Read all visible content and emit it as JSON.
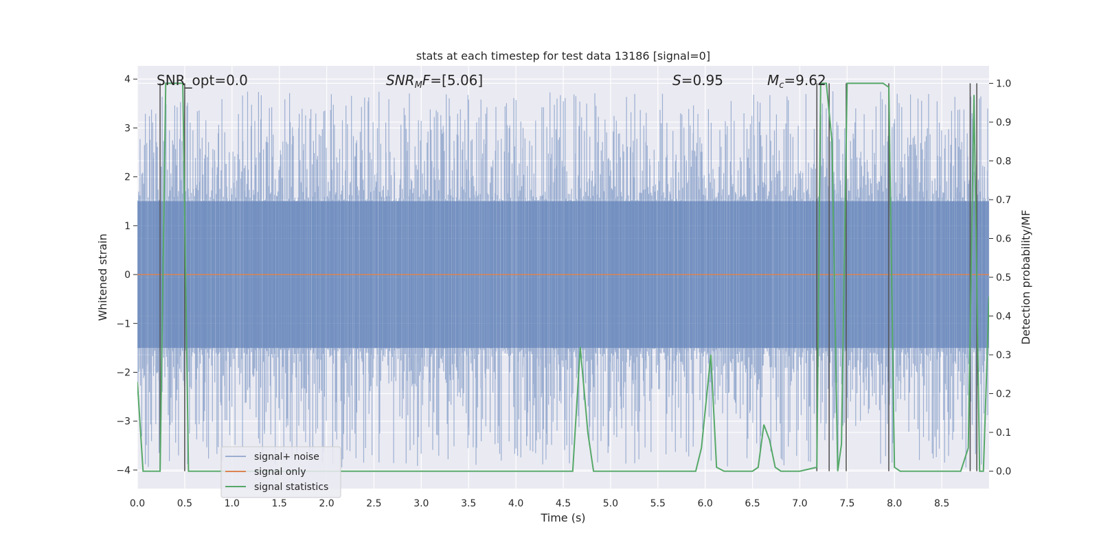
{
  "chart_data": {
    "type": "line",
    "title": "stats at each timestep for test data 13186 [signal=0]",
    "xlabel": "Time (s)",
    "ylabel_left": "Whitened strain",
    "ylabel_right": "Detection probability/MF",
    "xlim": [
      0.0,
      9.0
    ],
    "ylim_left": [
      -4.38,
      4.27
    ],
    "ylim_right": [
      -0.045,
      1.045
    ],
    "x_ticks": [
      "0.0",
      "0.5",
      "1.0",
      "1.5",
      "2.0",
      "2.5",
      "3.0",
      "3.5",
      "4.0",
      "4.5",
      "5.0",
      "5.5",
      "6.0",
      "6.5",
      "7.0",
      "7.5",
      "8.0",
      "8.5"
    ],
    "x_tick_values": [
      0.0,
      0.5,
      1.0,
      1.5,
      2.0,
      2.5,
      3.0,
      3.5,
      4.0,
      4.5,
      5.0,
      5.5,
      6.0,
      6.5,
      7.0,
      7.5,
      8.0,
      8.5
    ],
    "y_left_ticks": [
      "4",
      "3",
      "2",
      "1",
      "0",
      "−1",
      "−2",
      "−3",
      "−4"
    ],
    "y_left_tick_values": [
      4,
      3,
      2,
      1,
      0,
      -1,
      -2,
      -3,
      -4
    ],
    "y_right_ticks": [
      "1.0",
      "0.9",
      "0.8",
      "0.7",
      "0.6",
      "0.5",
      "0.4",
      "0.3",
      "0.2",
      "0.1",
      "0.0"
    ],
    "y_right_tick_values": [
      1.0,
      0.9,
      0.8,
      0.7,
      0.6,
      0.5,
      0.4,
      0.3,
      0.2,
      0.1,
      0.0
    ],
    "annotations": {
      "snr_opt": "SNR_opt=0.0",
      "snr_mf_label": "SNR",
      "snr_mf_sub": "M",
      "snr_mf_tail": "F",
      "snr_mf_value": "=[5.06]",
      "s_label": "S",
      "s_value": "=0.95",
      "mc_label": "M",
      "mc_sub": "c",
      "mc_value": "=9.62"
    },
    "legend": {
      "position": "lower-left",
      "entries": [
        {
          "label": "signal+ noise",
          "color": "#4c72b0"
        },
        {
          "label": "signal only",
          "color": "#dd8452"
        },
        {
          "label": "signal statistics",
          "color": "#55a868"
        }
      ]
    },
    "series": [
      {
        "name": "signal+ noise",
        "axis": "left",
        "color": "#4c72b0",
        "note": "whitened noise, dense band roughly ±1.5 with spikes to about ±3.7",
        "band_low": -1.5,
        "band_high": 1.5,
        "spike_max": 3.75,
        "spike_min": -3.95
      },
      {
        "name": "signal only",
        "axis": "left",
        "color": "#dd8452",
        "x": [
          0.0,
          9.0
        ],
        "y": [
          0.0,
          0.0
        ]
      },
      {
        "name": "signal statistics",
        "axis": "right",
        "color": "#55a868",
        "x": [
          0.0,
          0.06,
          0.12,
          0.18,
          0.24,
          0.3,
          0.36,
          0.42,
          0.48,
          0.54,
          0.6,
          0.66,
          4.6,
          4.68,
          4.76,
          4.82,
          4.9,
          5.9,
          5.96,
          6.06,
          6.12,
          6.2,
          6.5,
          6.56,
          6.62,
          6.68,
          6.74,
          6.8,
          6.9,
          7.0,
          7.18,
          7.22,
          7.28,
          7.34,
          7.4,
          7.44,
          7.5,
          7.56,
          7.64,
          7.7,
          7.76,
          7.82,
          7.88,
          7.94,
          8.0,
          8.06,
          8.2,
          8.7,
          8.78,
          8.84,
          8.9,
          8.94,
          9.0
        ],
        "y": [
          0.23,
          0.0,
          0.0,
          0.0,
          0.0,
          1.0,
          1.0,
          1.0,
          1.0,
          0.0,
          0.0,
          0.0,
          0.0,
          0.32,
          0.1,
          0.0,
          0.0,
          0.0,
          0.06,
          0.3,
          0.01,
          0.0,
          0.0,
          0.01,
          0.12,
          0.08,
          0.01,
          0.0,
          0.0,
          0.0,
          0.01,
          1.0,
          1.0,
          0.85,
          0.0,
          0.07,
          1.0,
          1.0,
          1.0,
          1.0,
          1.0,
          1.0,
          1.0,
          0.99,
          0.01,
          0.0,
          0.0,
          0.0,
          0.06,
          0.97,
          0.0,
          0.0,
          0.45
        ]
      },
      {
        "name": "vertical markers",
        "axis": "right",
        "color": "#555555",
        "x": [
          0.24,
          0.5,
          7.18,
          7.31,
          7.49,
          7.94,
          8.8,
          8.87
        ],
        "y_top": [
          1.0,
          1.0,
          1.0,
          1.0,
          1.0,
          1.0,
          1.0,
          1.0
        ]
      }
    ]
  }
}
